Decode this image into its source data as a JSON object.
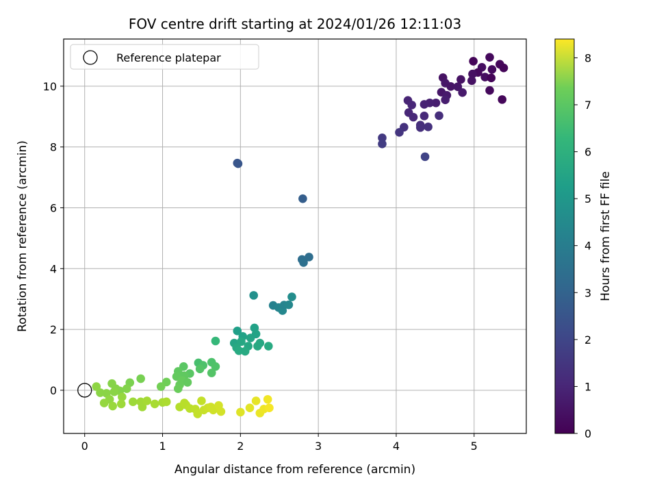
{
  "chart_data": {
    "type": "scatter",
    "title": "FOV centre drift starting at 2024/01/26 12:11:03",
    "xlabel": "Angular distance from reference (arcmin)",
    "ylabel": "Rotation from reference (arcmin)",
    "xlim": [
      -0.27,
      5.67
    ],
    "ylim": [
      -1.42,
      11.55
    ],
    "xticks": [
      0,
      1,
      2,
      3,
      4,
      5
    ],
    "yticks": [
      0,
      2,
      4,
      6,
      8,
      10
    ],
    "grid": true,
    "legend": {
      "placement": "top-left",
      "entries": [
        {
          "label": "Reference platepar",
          "marker": "open-circle",
          "x": 0,
          "y": 0
        }
      ]
    },
    "colorbar": {
      "label": "Hours from first FF file",
      "colormap": "viridis",
      "range": [
        0,
        8.4
      ],
      "ticks": [
        0,
        1,
        2,
        3,
        4,
        5,
        6,
        7,
        8
      ]
    },
    "columns": [
      "x",
      "y",
      "hours"
    ],
    "points": [
      [
        5.2,
        10.95,
        0.2
      ],
      [
        4.99,
        10.82,
        0.1
      ],
      [
        5.33,
        10.72,
        0.15
      ],
      [
        5.38,
        10.6,
        0.1
      ],
      [
        5.1,
        10.62,
        0.3
      ],
      [
        5.23,
        10.55,
        0.25
      ],
      [
        5.05,
        10.45,
        0.2
      ],
      [
        4.98,
        10.4,
        0.35
      ],
      [
        5.14,
        10.3,
        0.3
      ],
      [
        4.97,
        10.18,
        0.4
      ],
      [
        5.22,
        10.27,
        0.1
      ],
      [
        5.2,
        9.86,
        0.2
      ],
      [
        5.36,
        9.56,
        0.15
      ],
      [
        4.6,
        10.28,
        0.4
      ],
      [
        4.63,
        10.1,
        0.5
      ],
      [
        4.7,
        9.99,
        0.45
      ],
      [
        4.79,
        9.98,
        0.5
      ],
      [
        4.83,
        10.22,
        0.4
      ],
      [
        4.58,
        9.8,
        0.5
      ],
      [
        4.65,
        9.7,
        0.6
      ],
      [
        4.85,
        9.79,
        0.6
      ],
      [
        4.63,
        9.55,
        0.7
      ],
      [
        4.51,
        9.45,
        0.7
      ],
      [
        4.43,
        9.45,
        0.75
      ],
      [
        4.36,
        9.4,
        0.8
      ],
      [
        4.15,
        9.53,
        0.85
      ],
      [
        4.2,
        9.38,
        0.9
      ],
      [
        4.16,
        9.13,
        0.9
      ],
      [
        4.22,
        8.98,
        0.95
      ],
      [
        4.36,
        9.02,
        1.0
      ],
      [
        4.55,
        9.03,
        1.1
      ],
      [
        4.31,
        8.72,
        1.1
      ],
      [
        4.31,
        8.64,
        1.15
      ],
      [
        4.41,
        8.66,
        1.2
      ],
      [
        4.1,
        8.65,
        1.2
      ],
      [
        4.04,
        8.48,
        1.3
      ],
      [
        3.82,
        8.3,
        1.4
      ],
      [
        3.82,
        8.1,
        1.5
      ],
      [
        4.37,
        7.68,
        1.7
      ],
      [
        1.96,
        7.47,
        2.2
      ],
      [
        1.97,
        7.45,
        2.25
      ],
      [
        2.8,
        6.3,
        2.5
      ],
      [
        2.79,
        4.3,
        3.0
      ],
      [
        2.81,
        4.2,
        3.1
      ],
      [
        2.88,
        4.38,
        3.0
      ],
      [
        2.42,
        2.79,
        3.7
      ],
      [
        2.49,
        2.72,
        3.8
      ],
      [
        2.54,
        2.62,
        3.9
      ],
      [
        2.56,
        2.8,
        3.8
      ],
      [
        2.62,
        2.81,
        3.9
      ],
      [
        2.66,
        3.07,
        4.1
      ],
      [
        2.17,
        3.12,
        4.2
      ],
      [
        1.96,
        1.95,
        4.7
      ],
      [
        2.03,
        1.77,
        4.8
      ],
      [
        2.13,
        1.72,
        4.9
      ],
      [
        2.18,
        2.05,
        4.8
      ],
      [
        2.2,
        1.85,
        4.85
      ],
      [
        1.92,
        1.55,
        4.9
      ],
      [
        2.01,
        1.6,
        5.0
      ],
      [
        2.1,
        1.45,
        5.0
      ],
      [
        1.95,
        1.4,
        5.05
      ],
      [
        1.98,
        1.3,
        5.1
      ],
      [
        2.06,
        1.28,
        5.1
      ],
      [
        2.25,
        1.55,
        5.0
      ],
      [
        2.22,
        1.45,
        5.05
      ],
      [
        2.36,
        1.45,
        5.1
      ],
      [
        1.68,
        1.62,
        5.6
      ],
      [
        1.46,
        0.9,
        5.9
      ],
      [
        1.52,
        0.82,
        6.0
      ],
      [
        1.63,
        0.92,
        6.0
      ],
      [
        1.68,
        0.78,
        6.05
      ],
      [
        1.63,
        0.57,
        6.1
      ],
      [
        1.48,
        0.7,
        6.1
      ],
      [
        1.27,
        0.78,
        6.2
      ],
      [
        1.2,
        0.62,
        6.3
      ],
      [
        1.35,
        0.55,
        6.2
      ],
      [
        1.28,
        0.48,
        6.3
      ],
      [
        1.18,
        0.45,
        6.35
      ],
      [
        1.25,
        0.32,
        6.4
      ],
      [
        1.32,
        0.26,
        6.35
      ],
      [
        1.22,
        0.18,
        6.4
      ],
      [
        1.2,
        0.05,
        6.45
      ],
      [
        1.05,
        0.27,
        6.55
      ],
      [
        0.98,
        0.12,
        6.6
      ],
      [
        0.72,
        0.38,
        6.65
      ],
      [
        0.58,
        0.25,
        6.7
      ],
      [
        0.54,
        0.05,
        6.8
      ],
      [
        0.45,
        -0.02,
        6.8
      ],
      [
        0.35,
        0.22,
        6.85
      ],
      [
        0.4,
        0.05,
        6.85
      ],
      [
        0.38,
        -0.05,
        6.9
      ],
      [
        0.28,
        -0.1,
        6.9
      ],
      [
        0.2,
        -0.08,
        6.9
      ],
      [
        0.15,
        0.12,
        6.95
      ],
      [
        0.32,
        -0.3,
        7.0
      ],
      [
        0.25,
        -0.42,
        7.05
      ],
      [
        0.36,
        -0.52,
        7.1
      ],
      [
        0.48,
        -0.22,
        7.05
      ],
      [
        0.47,
        -0.45,
        7.15
      ],
      [
        0.62,
        -0.38,
        7.15
      ],
      [
        0.74,
        -0.55,
        7.2
      ],
      [
        0.72,
        -0.38,
        7.2
      ],
      [
        0.8,
        -0.35,
        7.25
      ],
      [
        0.9,
        -0.45,
        7.3
      ],
      [
        1.0,
        -0.4,
        7.3
      ],
      [
        1.05,
        -0.38,
        7.35
      ],
      [
        1.22,
        -0.55,
        7.45
      ],
      [
        1.3,
        -0.48,
        7.5
      ],
      [
        1.28,
        -0.42,
        7.5
      ],
      [
        1.35,
        -0.6,
        7.55
      ],
      [
        1.42,
        -0.62,
        7.6
      ],
      [
        1.45,
        -0.78,
        7.65
      ],
      [
        1.5,
        -0.35,
        7.65
      ],
      [
        1.53,
        -0.65,
        7.7
      ],
      [
        1.58,
        -0.58,
        7.75
      ],
      [
        1.62,
        -0.55,
        7.8
      ],
      [
        1.65,
        -0.65,
        7.8
      ],
      [
        1.72,
        -0.5,
        7.85
      ],
      [
        1.75,
        -0.7,
        7.85
      ],
      [
        2.0,
        -0.72,
        8.0
      ],
      [
        2.12,
        -0.58,
        8.05
      ],
      [
        2.2,
        -0.35,
        8.1
      ],
      [
        2.25,
        -0.75,
        8.15
      ],
      [
        2.3,
        -0.62,
        8.2
      ],
      [
        2.35,
        -0.3,
        8.25
      ],
      [
        2.37,
        -0.58,
        8.3
      ]
    ]
  }
}
